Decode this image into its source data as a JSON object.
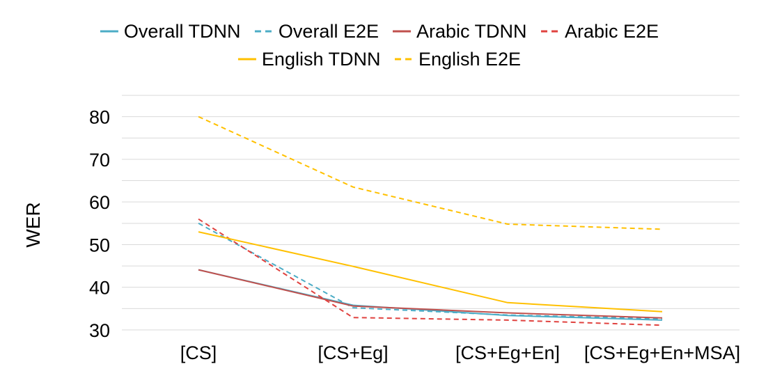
{
  "chart_data": {
    "type": "line",
    "title": "",
    "xlabel": "",
    "ylabel": "WER",
    "categories": [
      "[CS]",
      "[CS+Eg]",
      "[CS+Eg+En]",
      "[CS+Eg+En+MSA]"
    ],
    "yticks": [
      30,
      40,
      50,
      60,
      70,
      80
    ],
    "ylim": [
      28,
      90
    ],
    "grid": "horizontal gridlines at 5-unit intervals",
    "legend_position": "top",
    "series": [
      {
        "name": "Overall TDNN",
        "values": [
          44.1,
          35.8,
          33.4,
          32.3
        ],
        "color": "#4bacc6",
        "dash": "solid"
      },
      {
        "name": "Overall E2E",
        "values": [
          55.0,
          35.2,
          33.5,
          32.6
        ],
        "color": "#4bacc6",
        "dash": "dashed"
      },
      {
        "name": "Arabic TDNN",
        "values": [
          44.1,
          35.6,
          34.0,
          32.8
        ],
        "color": "#c0504d",
        "dash": "solid"
      },
      {
        "name": "Arabic E2E",
        "values": [
          56.0,
          32.9,
          32.3,
          31.1
        ],
        "color": "#e0423f",
        "dash": "dashed"
      },
      {
        "name": "English TDNN",
        "values": [
          53.0,
          44.9,
          36.4,
          34.3
        ],
        "color": "#ffc000",
        "dash": "solid"
      },
      {
        "name": "English E2E",
        "values": [
          80.0,
          63.5,
          54.8,
          53.6
        ],
        "color": "#ffc000",
        "dash": "dashed"
      }
    ]
  }
}
